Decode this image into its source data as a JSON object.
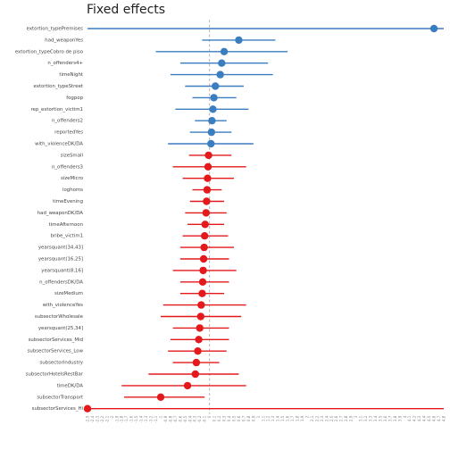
{
  "chart_data": {
    "type": "scatter",
    "title": "Fixed effects",
    "xlabel": "",
    "ylabel": "",
    "xlim": [
      -2.5,
      4.8
    ],
    "reference_line": 0,
    "grid": false,
    "legend": "none",
    "colors": {
      "positive": "#3a7dc0",
      "negative": "#e3191c",
      "zero_line": "#bbbbbb"
    },
    "xticks": [
      "-2.5",
      "-2.4",
      "-2.3",
      "-2.2",
      "-2.1",
      "-2",
      "-1.9",
      "-1.8",
      "-1.7",
      "-1.6",
      "-1.5",
      "-1.4",
      "-1.3",
      "-1.2",
      "-1.1",
      "-1",
      "-0.9",
      "-0.8",
      "-0.7",
      "-0.6",
      "-0.5",
      "-0.4",
      "-0.3",
      "-0.2",
      "-0.1",
      "0",
      "0.1",
      "0.2",
      "0.3",
      "0.4",
      "0.5",
      "0.6",
      "0.7",
      "0.8",
      "0.9",
      "1",
      "1.1",
      "1.2",
      "1.3",
      "1.4",
      "1.5",
      "1.6",
      "1.7",
      "1.8",
      "1.9",
      "2",
      "2.1",
      "2.2",
      "2.3",
      "2.4",
      "2.5",
      "2.6",
      "2.7",
      "2.8",
      "2.9",
      "3",
      "3.1",
      "3.2",
      "3.3",
      "3.4",
      "3.5",
      "3.6",
      "3.7",
      "3.8",
      "3.9",
      "4",
      "4.1",
      "4.2",
      "4.3",
      "4.4",
      "4.5",
      "4.6",
      "4.7",
      "4.8"
    ],
    "series": [
      {
        "label": "extortion_typePremises",
        "estimate": 4.6,
        "lower": -2.5,
        "upper": 4.8,
        "sign": "positive"
      },
      {
        "label": "had_weaponYes",
        "estimate": 0.6,
        "lower": -0.15,
        "upper": 1.35,
        "sign": "positive"
      },
      {
        "label": "extortion_typeCobro de piso",
        "estimate": 0.3,
        "lower": -1.1,
        "upper": 1.6,
        "sign": "positive"
      },
      {
        "label": "n_offenders4+",
        "estimate": 0.25,
        "lower": -0.6,
        "upper": 1.2,
        "sign": "positive"
      },
      {
        "label": "timeNight",
        "estimate": 0.22,
        "lower": -0.8,
        "upper": 1.3,
        "sign": "positive"
      },
      {
        "label": "extortion_typeStreet",
        "estimate": 0.12,
        "lower": -0.5,
        "upper": 0.7,
        "sign": "positive"
      },
      {
        "label": "fogpop",
        "estimate": 0.09,
        "lower": -0.35,
        "upper": 0.55,
        "sign": "positive"
      },
      {
        "label": "rep_extortion_victim1",
        "estimate": 0.07,
        "lower": -0.7,
        "upper": 0.8,
        "sign": "positive"
      },
      {
        "label": "n_offenders2",
        "estimate": 0.05,
        "lower": -0.3,
        "upper": 0.35,
        "sign": "positive"
      },
      {
        "label": "reportedYes",
        "estimate": 0.04,
        "lower": -0.4,
        "upper": 0.45,
        "sign": "positive"
      },
      {
        "label": "with_violenceDK/DA",
        "estimate": 0.03,
        "lower": -0.85,
        "upper": 0.9,
        "sign": "positive"
      },
      {
        "label": "sizeSmall",
        "estimate": -0.02,
        "lower": -0.42,
        "upper": 0.45,
        "sign": "negative"
      },
      {
        "label": "n_offenders3",
        "estimate": -0.03,
        "lower": -0.75,
        "upper": 0.75,
        "sign": "negative"
      },
      {
        "label": "sizeMicro",
        "estimate": -0.04,
        "lower": -0.55,
        "upper": 0.5,
        "sign": "negative"
      },
      {
        "label": "loghoms",
        "estimate": -0.05,
        "lower": -0.35,
        "upper": 0.25,
        "sign": "negative"
      },
      {
        "label": "timeEvening",
        "estimate": -0.06,
        "lower": -0.4,
        "upper": 0.3,
        "sign": "negative"
      },
      {
        "label": "had_weaponDK/DA",
        "estimate": -0.07,
        "lower": -0.5,
        "upper": 0.35,
        "sign": "negative"
      },
      {
        "label": "timeAfternoon",
        "estimate": -0.09,
        "lower": -0.45,
        "upper": 0.3,
        "sign": "negative"
      },
      {
        "label": "bribe_victim1",
        "estimate": -0.1,
        "lower": -0.55,
        "upper": 0.38,
        "sign": "negative"
      },
      {
        "label": "yearsquant(34,43]",
        "estimate": -0.11,
        "lower": -0.6,
        "upper": 0.5,
        "sign": "negative"
      },
      {
        "label": "yearsquant(16,25]",
        "estimate": -0.12,
        "lower": -0.6,
        "upper": 0.4,
        "sign": "negative"
      },
      {
        "label": "yearsquant(8,16]",
        "estimate": -0.13,
        "lower": -0.75,
        "upper": 0.55,
        "sign": "negative"
      },
      {
        "label": "n_offendersDK/DA",
        "estimate": -0.14,
        "lower": -0.6,
        "upper": 0.4,
        "sign": "negative"
      },
      {
        "label": "sizeMedium",
        "estimate": -0.15,
        "lower": -0.6,
        "upper": 0.3,
        "sign": "negative"
      },
      {
        "label": "with_violenceYes",
        "estimate": -0.17,
        "lower": -0.95,
        "upper": 0.75,
        "sign": "negative"
      },
      {
        "label": "subsectorWholesale",
        "estimate": -0.18,
        "lower": -1.0,
        "upper": 0.65,
        "sign": "negative"
      },
      {
        "label": "yearsquant(25,34]",
        "estimate": -0.2,
        "lower": -0.75,
        "upper": 0.4,
        "sign": "negative"
      },
      {
        "label": "subsectorServices_Mid",
        "estimate": -0.22,
        "lower": -0.8,
        "upper": 0.4,
        "sign": "negative"
      },
      {
        "label": "subsectorServices_Low",
        "estimate": -0.24,
        "lower": -0.85,
        "upper": 0.35,
        "sign": "negative"
      },
      {
        "label": "subsectorIndustry",
        "estimate": -0.27,
        "lower": -0.75,
        "upper": 0.2,
        "sign": "negative"
      },
      {
        "label": "subsectorHotelsRestBar",
        "estimate": -0.29,
        "lower": -1.25,
        "upper": 0.6,
        "sign": "negative"
      },
      {
        "label": "timeDK/DA",
        "estimate": -0.45,
        "lower": -1.8,
        "upper": 0.75,
        "sign": "negative"
      },
      {
        "label": "subsectorTransport",
        "estimate": -1.0,
        "lower": -1.75,
        "upper": -0.1,
        "sign": "negative"
      },
      {
        "label": "subsectorServices_Hi",
        "estimate": -2.5,
        "lower": -2.5,
        "upper": 4.8,
        "sign": "negative"
      }
    ]
  }
}
